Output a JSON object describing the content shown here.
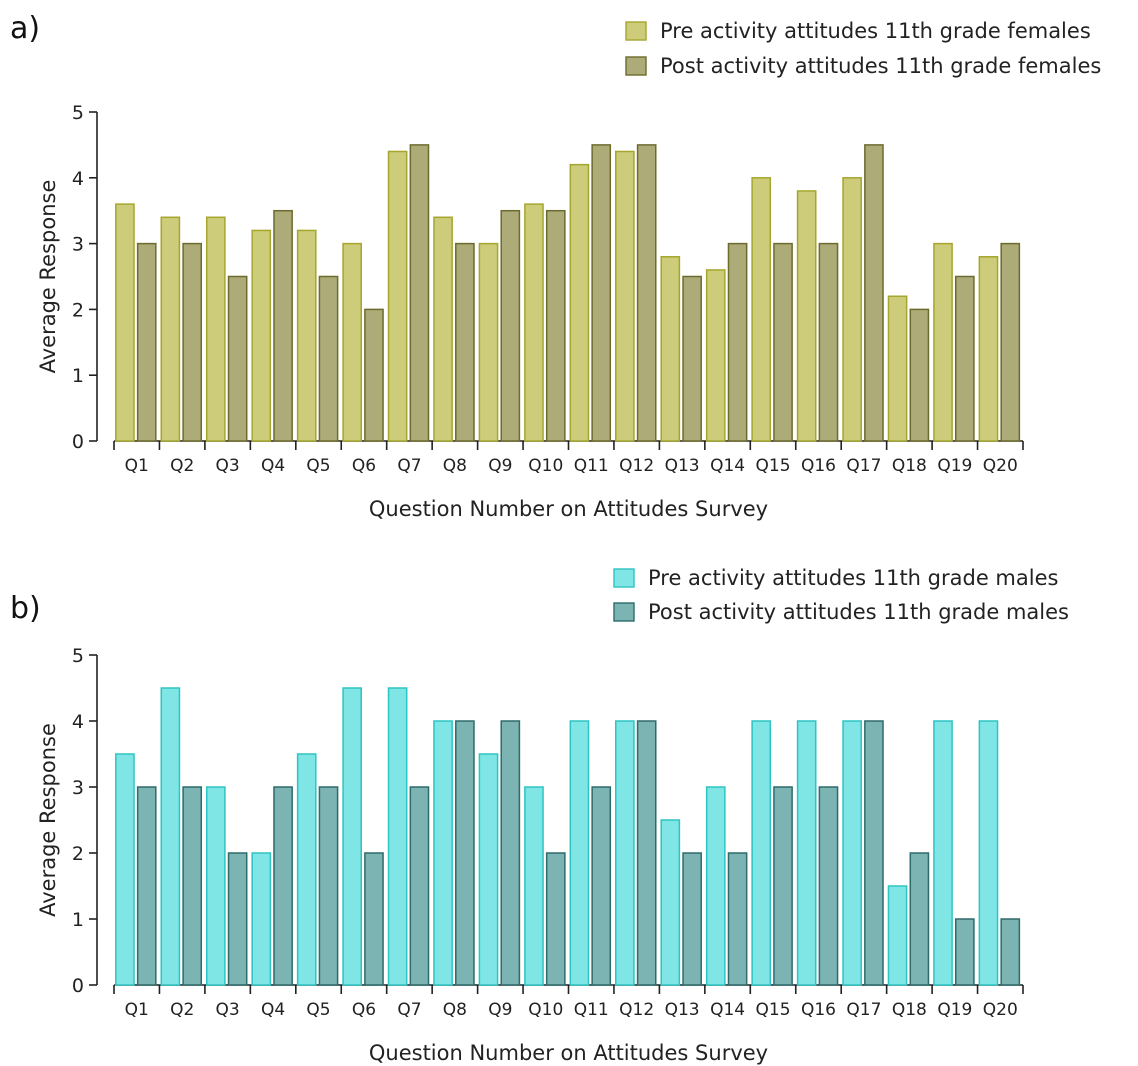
{
  "chart_data": [
    {
      "panel_label": "a)",
      "type": "bar",
      "categories": [
        "Q1",
        "Q2",
        "Q3",
        "Q4",
        "Q5",
        "Q6",
        "Q7",
        "Q8",
        "Q9",
        "Q10",
        "Q11",
        "Q12",
        "Q13",
        "Q14",
        "Q15",
        "Q16",
        "Q17",
        "Q18",
        "Q19",
        "Q20"
      ],
      "series": [
        {
          "name": "Pre activity attitudes 11th grade females",
          "fill": "#cccc7a",
          "stroke": "#a6a62e",
          "values": [
            3.6,
            3.4,
            3.4,
            3.2,
            3.2,
            3.0,
            4.4,
            3.4,
            3.0,
            3.6,
            4.2,
            4.4,
            2.8,
            2.6,
            4.0,
            3.8,
            4.0,
            2.2,
            3.0,
            2.8
          ]
        },
        {
          "name": "Post activity attitudes 11th grade females",
          "fill": "#adab78",
          "stroke": "#6d6b2e",
          "values": [
            3.0,
            3.0,
            2.5,
            3.5,
            2.5,
            2.0,
            4.5,
            3.0,
            3.5,
            3.5,
            4.5,
            4.5,
            2.5,
            3.0,
            3.0,
            3.0,
            4.5,
            2.0,
            2.5,
            3.0
          ]
        }
      ],
      "xlabel": "Question Number on Attitudes Survey",
      "ylabel": "Average Response",
      "ylim": [
        0,
        5
      ],
      "yticks": [
        0,
        1,
        2,
        3,
        4,
        5
      ],
      "legend": "top-right",
      "grid": false
    },
    {
      "panel_label": "b)",
      "type": "bar",
      "categories": [
        "Q1",
        "Q2",
        "Q3",
        "Q4",
        "Q5",
        "Q6",
        "Q7",
        "Q8",
        "Q9",
        "Q10",
        "Q11",
        "Q12",
        "Q13",
        "Q14",
        "Q15",
        "Q16",
        "Q17",
        "Q18",
        "Q19",
        "Q20"
      ],
      "series": [
        {
          "name": "Pre activity attitudes 11th grade males",
          "fill": "#7fe5e5",
          "stroke": "#2ec4c4",
          "values": [
            3.5,
            4.5,
            3.0,
            2.0,
            3.5,
            4.5,
            4.5,
            4.0,
            3.5,
            3.0,
            4.0,
            4.0,
            2.5,
            3.0,
            4.0,
            4.0,
            4.0,
            1.5,
            4.0,
            4.0
          ]
        },
        {
          "name": "Post activity attitudes 11th grade males",
          "fill": "#7cb3b3",
          "stroke": "#2e6b6b",
          "values": [
            3.0,
            3.0,
            2.0,
            3.0,
            3.0,
            2.0,
            3.0,
            4.0,
            4.0,
            2.0,
            3.0,
            4.0,
            2.0,
            2.0,
            3.0,
            3.0,
            4.0,
            2.0,
            1.0,
            1.0
          ]
        }
      ],
      "xlabel": "Question Number on Attitudes Survey",
      "ylabel": "Average Response",
      "ylim": [
        0,
        5
      ],
      "yticks": [
        0,
        1,
        2,
        3,
        4,
        5
      ],
      "legend": "top-right",
      "grid": false
    }
  ]
}
